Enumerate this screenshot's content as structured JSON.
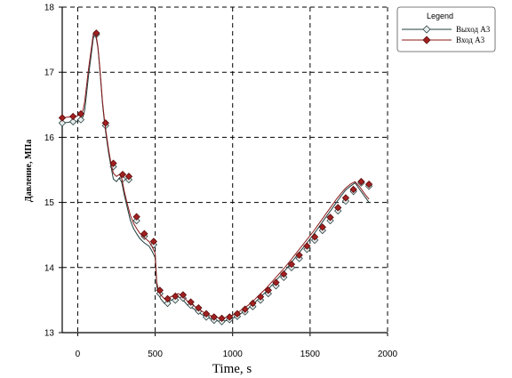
{
  "chart_data": {
    "type": "line",
    "title": "",
    "xlabel": "Time, s",
    "ylabel": "Давление, МПа",
    "xlim": [
      -100,
      2000
    ],
    "ylim": [
      13,
      18
    ],
    "xticks": [
      0,
      500,
      1000,
      1500,
      2000
    ],
    "yticks": [
      13,
      14,
      15,
      16,
      17,
      18
    ],
    "grid": true,
    "legend_title": "Legend",
    "legend_position": "top-right",
    "series": [
      {
        "name": "Выход А3",
        "color": "#1f3d3d",
        "marker": "diamond-open",
        "x": [
          -100,
          -65,
          -35,
          0,
          20,
          35,
          45,
          55,
          70,
          90,
          100,
          110,
          120,
          130,
          140,
          150,
          160,
          175,
          190,
          200,
          215,
          230,
          250,
          270,
          285,
          300,
          320,
          340,
          360,
          380,
          400,
          420,
          440,
          460,
          480,
          500,
          510,
          520,
          535,
          560,
          590,
          620,
          650,
          680,
          710,
          740,
          770,
          800,
          830,
          860,
          890,
          920,
          950,
          980,
          1010,
          1040,
          1070,
          1100,
          1130,
          1160,
          1190,
          1220,
          1250,
          1280,
          1310,
          1340,
          1370,
          1400,
          1430,
          1460,
          1490,
          1520,
          1550,
          1580,
          1610,
          1640,
          1670,
          1700,
          1730,
          1760,
          1790,
          1820,
          1850,
          1880
        ],
        "y": [
          16.22,
          16.23,
          16.24,
          16.25,
          16.27,
          16.32,
          16.42,
          16.62,
          16.95,
          17.32,
          17.52,
          17.58,
          17.52,
          17.38,
          17.12,
          16.82,
          16.52,
          16.18,
          15.92,
          15.75,
          15.55,
          15.36,
          15.32,
          15.38,
          15.3,
          15.12,
          14.92,
          14.72,
          14.6,
          14.52,
          14.45,
          14.4,
          14.36,
          14.33,
          14.25,
          14.15,
          13.72,
          13.6,
          13.52,
          13.45,
          13.48,
          13.52,
          13.55,
          13.5,
          13.42,
          13.38,
          13.33,
          13.28,
          13.24,
          13.21,
          13.19,
          13.17,
          13.18,
          13.2,
          13.23,
          13.27,
          13.32,
          13.37,
          13.43,
          13.5,
          13.57,
          13.64,
          13.72,
          13.8,
          13.88,
          13.96,
          14.05,
          14.14,
          14.23,
          14.32,
          14.41,
          14.5,
          14.6,
          14.7,
          14.8,
          14.9,
          15.0,
          15.1,
          15.19,
          15.25,
          15.3,
          15.2,
          15.1,
          15.0
        ],
        "marker_x": [
          -100,
          -30,
          20,
          120,
          180,
          230,
          290,
          330,
          380,
          430,
          490,
          530,
          580,
          630,
          680,
          730,
          780,
          830,
          880,
          930,
          980,
          1030,
          1080,
          1130,
          1180,
          1230,
          1280,
          1330,
          1380,
          1430,
          1480,
          1530,
          1580,
          1630,
          1680,
          1730,
          1780,
          1830,
          1880
        ],
        "marker_y": [
          16.22,
          16.24,
          16.27,
          17.58,
          16.18,
          15.55,
          15.36,
          15.35,
          14.72,
          14.48,
          14.35,
          13.6,
          13.45,
          13.5,
          13.53,
          13.42,
          13.33,
          13.24,
          13.19,
          13.17,
          13.2,
          13.25,
          13.32,
          13.4,
          13.5,
          13.6,
          13.72,
          13.85,
          14.0,
          14.14,
          14.28,
          14.42,
          14.57,
          14.72,
          14.87,
          15.02,
          15.17,
          15.3,
          15.25
        ]
      },
      {
        "name": "Вход А3",
        "color": "#8b1a1a",
        "marker": "diamond-filled",
        "x": [
          -100,
          -65,
          -35,
          0,
          20,
          35,
          45,
          55,
          70,
          90,
          100,
          110,
          120,
          130,
          140,
          150,
          160,
          175,
          190,
          200,
          215,
          230,
          250,
          270,
          285,
          300,
          320,
          340,
          360,
          380,
          400,
          420,
          440,
          460,
          480,
          500,
          510,
          520,
          535,
          560,
          590,
          620,
          650,
          680,
          710,
          740,
          770,
          800,
          830,
          860,
          890,
          920,
          950,
          980,
          1010,
          1040,
          1070,
          1100,
          1130,
          1160,
          1190,
          1220,
          1250,
          1280,
          1310,
          1340,
          1370,
          1400,
          1430,
          1460,
          1490,
          1520,
          1550,
          1580,
          1610,
          1640,
          1670,
          1700,
          1730,
          1760,
          1790,
          1820,
          1850,
          1880
        ],
        "y": [
          16.3,
          16.31,
          16.32,
          16.33,
          16.36,
          16.42,
          16.55,
          16.75,
          17.05,
          17.4,
          17.58,
          17.62,
          17.55,
          17.4,
          17.15,
          16.85,
          16.55,
          16.22,
          15.97,
          15.8,
          15.6,
          15.45,
          15.4,
          15.43,
          15.36,
          15.18,
          14.98,
          14.8,
          14.68,
          14.6,
          14.53,
          14.48,
          14.44,
          14.4,
          14.32,
          14.22,
          13.78,
          13.65,
          13.58,
          13.52,
          13.54,
          13.57,
          13.6,
          13.55,
          13.48,
          13.43,
          13.38,
          13.33,
          13.29,
          13.26,
          13.24,
          13.22,
          13.23,
          13.25,
          13.28,
          13.32,
          13.37,
          13.42,
          13.48,
          13.55,
          13.62,
          13.69,
          13.77,
          13.85,
          13.93,
          14.01,
          14.1,
          14.19,
          14.28,
          14.37,
          14.46,
          14.55,
          14.65,
          14.75,
          14.85,
          14.95,
          15.05,
          15.14,
          15.22,
          15.28,
          15.32,
          15.24,
          15.14,
          15.05
        ],
        "marker_x": [
          -100,
          -30,
          20,
          120,
          180,
          230,
          290,
          330,
          380,
          430,
          490,
          530,
          580,
          630,
          680,
          730,
          780,
          830,
          880,
          930,
          980,
          1030,
          1080,
          1130,
          1180,
          1230,
          1280,
          1330,
          1380,
          1430,
          1480,
          1530,
          1580,
          1630,
          1680,
          1730,
          1780,
          1830,
          1880
        ],
        "marker_y": [
          16.3,
          16.32,
          16.36,
          17.6,
          16.22,
          15.6,
          15.43,
          15.4,
          14.78,
          14.52,
          14.4,
          13.65,
          13.52,
          13.56,
          13.58,
          13.47,
          13.38,
          13.29,
          13.24,
          13.22,
          13.24,
          13.29,
          13.36,
          13.45,
          13.55,
          13.65,
          13.77,
          13.9,
          14.05,
          14.19,
          14.33,
          14.47,
          14.62,
          14.77,
          14.92,
          15.07,
          15.2,
          15.32,
          15.28
        ]
      }
    ]
  }
}
